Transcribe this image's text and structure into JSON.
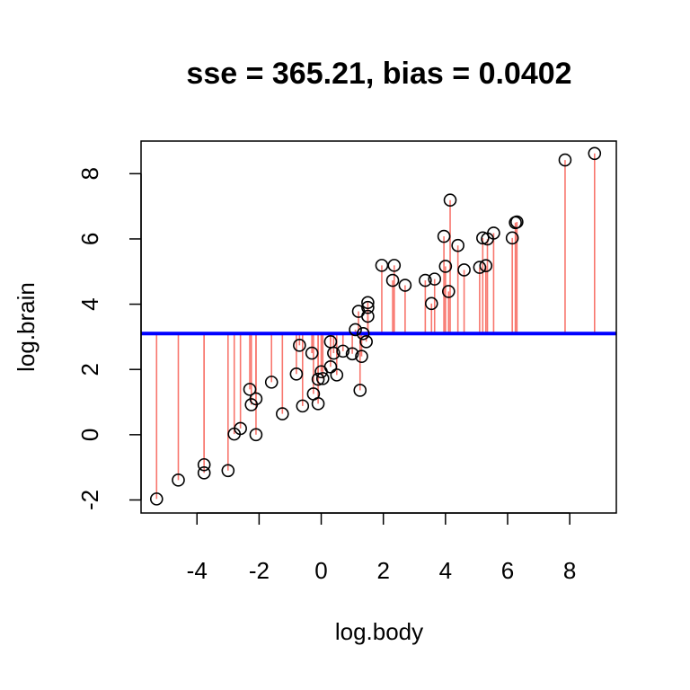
{
  "chart_data": {
    "type": "scatter",
    "title": "sse = 365.21, bias = 0.0402",
    "xlabel": "log.body",
    "ylabel": "log.brain",
    "xlim": [
      -5.8,
      9.5
    ],
    "ylim": [
      -2.4,
      9.0
    ],
    "x_ticks": [
      -4,
      -2,
      0,
      2,
      4,
      6,
      8
    ],
    "y_ticks": [
      -2,
      0,
      2,
      4,
      6,
      8
    ],
    "fit_line": {
      "y": 3.1,
      "color": "#0000ff"
    },
    "residual_color": "#f8766d",
    "point_color": "#000000",
    "grid": false,
    "legend": "none",
    "points": [
      {
        "x": -5.3,
        "y": -1.97
      },
      {
        "x": -4.6,
        "y": -1.39
      },
      {
        "x": -3.77,
        "y": -1.17
      },
      {
        "x": -3.77,
        "y": -0.92
      },
      {
        "x": -3.0,
        "y": -1.1
      },
      {
        "x": -2.8,
        "y": 0.02
      },
      {
        "x": -2.6,
        "y": 0.19
      },
      {
        "x": -2.3,
        "y": 1.39
      },
      {
        "x": -2.25,
        "y": 0.92
      },
      {
        "x": -2.1,
        "y": 1.1
      },
      {
        "x": -2.1,
        "y": 0.0
      },
      {
        "x": -1.6,
        "y": 1.61
      },
      {
        "x": -1.25,
        "y": 0.64
      },
      {
        "x": -0.8,
        "y": 1.86
      },
      {
        "x": -0.7,
        "y": 2.74
      },
      {
        "x": -0.6,
        "y": 0.88
      },
      {
        "x": -0.3,
        "y": 2.5
      },
      {
        "x": -0.25,
        "y": 1.25
      },
      {
        "x": -0.1,
        "y": 1.7
      },
      {
        "x": -0.1,
        "y": 0.95
      },
      {
        "x": 0.0,
        "y": 1.93
      },
      {
        "x": 0.05,
        "y": 1.72
      },
      {
        "x": 0.3,
        "y": 2.08
      },
      {
        "x": 0.3,
        "y": 2.85
      },
      {
        "x": 0.4,
        "y": 2.5
      },
      {
        "x": 0.5,
        "y": 1.83
      },
      {
        "x": 0.7,
        "y": 2.56
      },
      {
        "x": 1.0,
        "y": 2.48
      },
      {
        "x": 1.1,
        "y": 3.22
      },
      {
        "x": 1.2,
        "y": 3.78
      },
      {
        "x": 1.25,
        "y": 1.36
      },
      {
        "x": 1.3,
        "y": 2.4
      },
      {
        "x": 1.35,
        "y": 3.1
      },
      {
        "x": 1.45,
        "y": 2.85
      },
      {
        "x": 1.5,
        "y": 3.63
      },
      {
        "x": 1.5,
        "y": 3.9
      },
      {
        "x": 1.5,
        "y": 4.05
      },
      {
        "x": 1.95,
        "y": 5.19
      },
      {
        "x": 2.3,
        "y": 4.73
      },
      {
        "x": 2.35,
        "y": 5.19
      },
      {
        "x": 2.7,
        "y": 4.58
      },
      {
        "x": 3.35,
        "y": 4.73
      },
      {
        "x": 3.55,
        "y": 4.02
      },
      {
        "x": 3.65,
        "y": 4.77
      },
      {
        "x": 3.95,
        "y": 6.08
      },
      {
        "x": 4.0,
        "y": 5.16
      },
      {
        "x": 4.1,
        "y": 4.39
      },
      {
        "x": 4.15,
        "y": 7.19
      },
      {
        "x": 4.4,
        "y": 5.8
      },
      {
        "x": 4.6,
        "y": 5.05
      },
      {
        "x": 5.1,
        "y": 5.13
      },
      {
        "x": 5.2,
        "y": 6.03
      },
      {
        "x": 5.3,
        "y": 5.18
      },
      {
        "x": 5.35,
        "y": 6.0
      },
      {
        "x": 5.55,
        "y": 6.18
      },
      {
        "x": 6.15,
        "y": 6.03
      },
      {
        "x": 6.25,
        "y": 6.5
      },
      {
        "x": 6.3,
        "y": 6.52
      },
      {
        "x": 7.85,
        "y": 8.42
      },
      {
        "x": 8.8,
        "y": 8.62
      }
    ]
  }
}
